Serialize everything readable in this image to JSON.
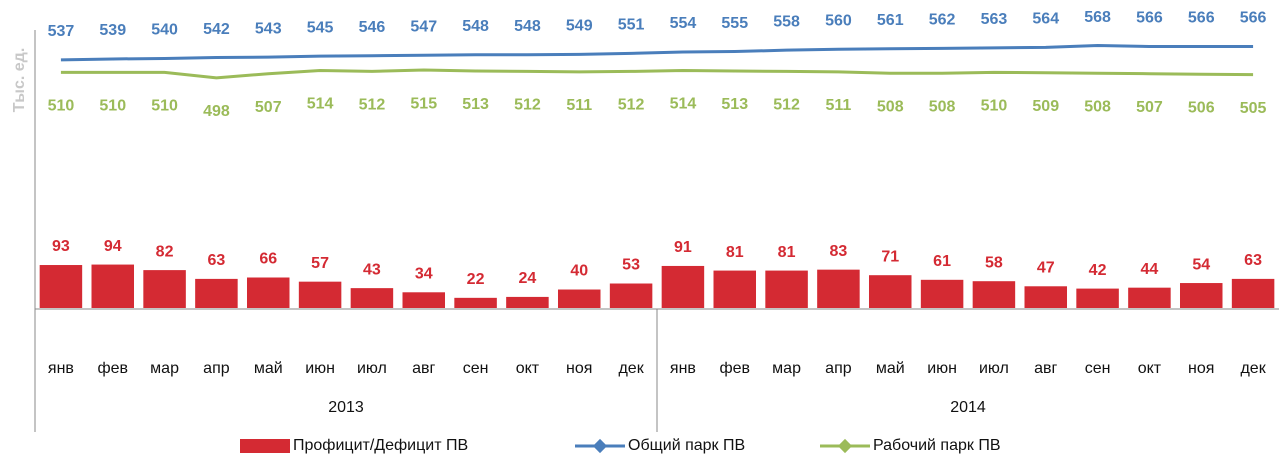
{
  "chart_data": {
    "type": "bar",
    "y_label": "Тыс. ед.",
    "categories": [
      "янв",
      "фев",
      "мар",
      "апр",
      "май",
      "июн",
      "июл",
      "авг",
      "сен",
      "окт",
      "ноя",
      "дек",
      "янв",
      "фев",
      "мар",
      "апр",
      "май",
      "июн",
      "июл",
      "авг",
      "сен",
      "окт",
      "ноя",
      "дек"
    ],
    "groups": [
      "2013",
      "2014"
    ],
    "ylim": [
      0,
      580
    ],
    "legend": "bottom",
    "series": [
      {
        "name": "Профицит/Дефицит ПВ",
        "type": "bar",
        "color": "#d42a33",
        "values": [
          93,
          94,
          82,
          63,
          66,
          57,
          43,
          34,
          22,
          24,
          40,
          53,
          91,
          81,
          81,
          83,
          71,
          61,
          58,
          47,
          42,
          44,
          54,
          63
        ]
      },
      {
        "name": "Общий парк ПВ",
        "type": "line",
        "color": "#4a7ebb",
        "values": [
          537,
          539,
          540,
          542,
          543,
          545,
          546,
          547,
          548,
          548,
          549,
          551,
          554,
          555,
          558,
          560,
          561,
          562,
          563,
          564,
          568,
          566,
          566,
          566
        ]
      },
      {
        "name": "Рабочий парк ПВ",
        "type": "line",
        "color": "#9bbb59",
        "values": [
          510,
          510,
          510,
          498,
          507,
          514,
          512,
          515,
          513,
          512,
          511,
          512,
          514,
          513,
          512,
          511,
          508,
          508,
          510,
          509,
          508,
          507,
          506,
          505
        ]
      }
    ]
  }
}
